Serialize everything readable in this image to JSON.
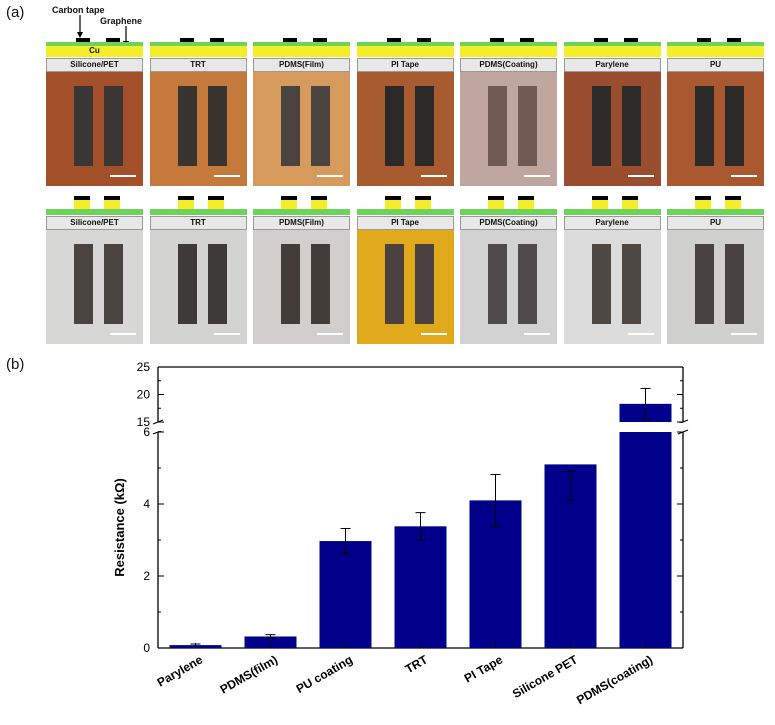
{
  "panel_a": {
    "label": "(a)",
    "legend": {
      "carbon_tape": "Carbon tape",
      "graphene": "Graphene",
      "cu": "Cu"
    },
    "top_row": [
      {
        "label": "Silicone/PET",
        "bg": "#a4502b",
        "strip": "#3a3633"
      },
      {
        "label": "TRT",
        "bg": "#c57a3c",
        "strip": "#3a3430"
      },
      {
        "label": "PDMS(Film)",
        "bg": "#d59a5c",
        "strip": "#4a4340"
      },
      {
        "label": "PI Tape",
        "bg": "#a85b2e",
        "strip": "#2c2a29"
      },
      {
        "label": "PDMS(Coating)",
        "bg": "#bfa7a0",
        "strip": "#6d5b54"
      },
      {
        "label": "Parylene",
        "bg": "#9a4d2f",
        "strip": "#2e2c2b"
      },
      {
        "label": "PU",
        "bg": "#a9582f",
        "strip": "#2c2a29"
      }
    ],
    "bottom_row": [
      {
        "label": "Silicone/PET",
        "bg": "#d7d7d5",
        "strip": "#4a4440"
      },
      {
        "label": "TRT",
        "bg": "#d3d3d1",
        "strip": "#3e3a38"
      },
      {
        "label": "PDMS(Film)",
        "bg": "#d0cfcc",
        "strip": "#433d3a"
      },
      {
        "label": "PI Tape",
        "bg": "#e0aa1c",
        "strip": "#4a4140"
      },
      {
        "label": "PDMS(Coating)",
        "bg": "#d2d2d2",
        "strip": "#4f4b49"
      },
      {
        "label": "Parylene",
        "bg": "#dcdcdc",
        "strip": "#4d4844"
      },
      {
        "label": "PU",
        "bg": "#d0d0cf",
        "strip": "#474241"
      }
    ]
  },
  "panel_b": {
    "label": "(b)"
  },
  "chart_data": {
    "type": "bar",
    "title": "",
    "xlabel": "",
    "ylabel": "Resistance (kΩ)",
    "categories": [
      "Parylene",
      "PDMS(film)",
      "PU coating",
      "TRT",
      "PI Tape",
      "Silicone PET",
      "PDMS(coating)"
    ],
    "values": [
      0.08,
      0.32,
      2.97,
      3.38,
      4.1,
      5.1,
      18.3
    ],
    "errors": [
      0.03,
      0.05,
      0.35,
      0.38,
      0.72,
      1.0,
      2.8
    ],
    "bar_color": "#00008b",
    "broken_axis": true,
    "ylim_lower": [
      0,
      6
    ],
    "ylim_upper": [
      15,
      25
    ],
    "yticks_lower": [
      "0",
      "2",
      "4",
      "6"
    ],
    "yticks_upper": [
      "15",
      "20",
      "25"
    ]
  }
}
